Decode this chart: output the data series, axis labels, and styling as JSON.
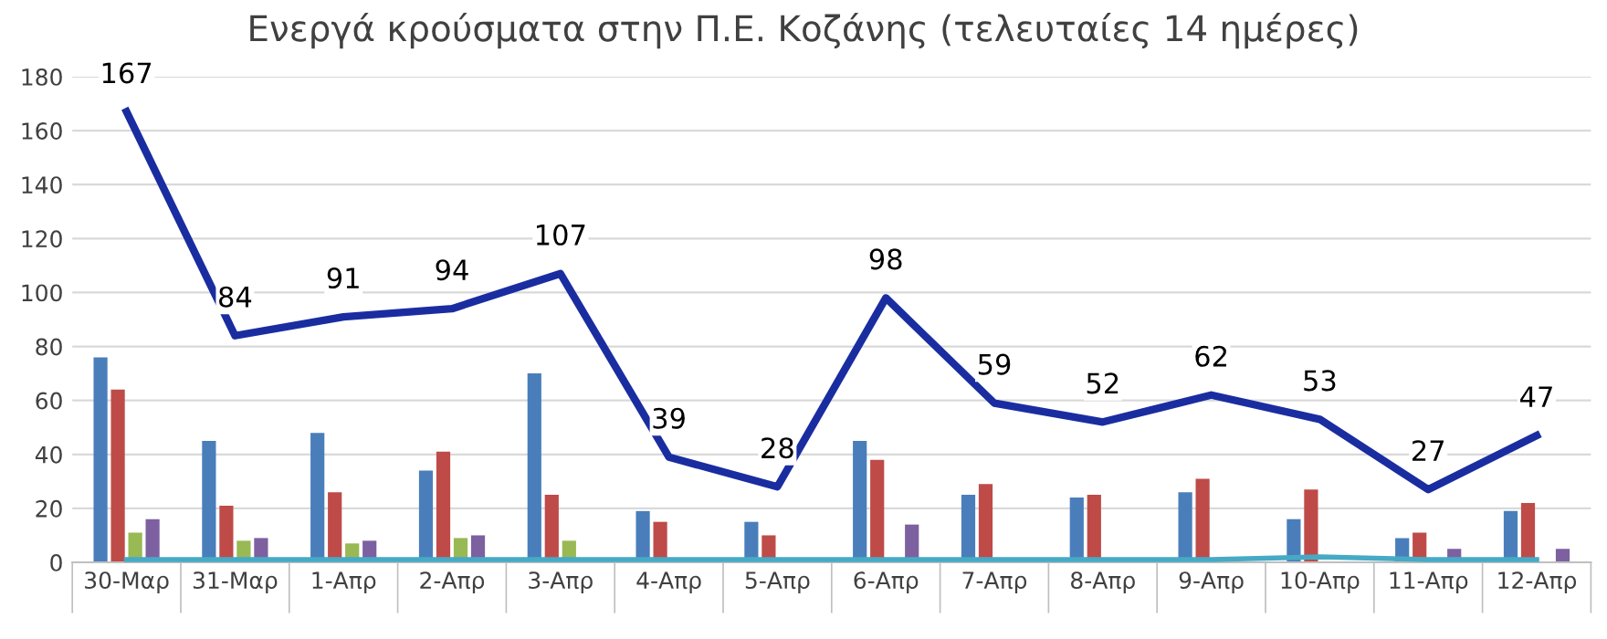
{
  "chart_data": {
    "type": "bar",
    "title": "Ενεργά κρούσματα στην Π.Ε. Κοζάνης (τελευταίες 14 ημέρες)",
    "categories": [
      "30-Μαρ",
      "31-Μαρ",
      "1-Απρ",
      "2-Απρ",
      "3-Απρ",
      "4-Απρ",
      "5-Απρ",
      "6-Απρ",
      "7-Απρ",
      "8-Απρ",
      "9-Απρ",
      "10-Απρ",
      "11-Απρ",
      "12-Απρ"
    ],
    "series": [
      {
        "color": "#4a7ebb",
        "values": [
          76,
          45,
          48,
          34,
          70,
          19,
          15,
          45,
          25,
          24,
          26,
          16,
          9,
          19
        ]
      },
      {
        "color": "#be4b48",
        "values": [
          64,
          21,
          26,
          41,
          25,
          15,
          10,
          38,
          29,
          25,
          31,
          27,
          11,
          22
        ]
      },
      {
        "color": "#98b954",
        "values": [
          11,
          8,
          7,
          9,
          8,
          null,
          null,
          null,
          null,
          null,
          null,
          null,
          null,
          null
        ]
      },
      {
        "color": "#7d60a0",
        "values": [
          16,
          9,
          8,
          10,
          null,
          null,
          null,
          14,
          null,
          null,
          null,
          null,
          5,
          5
        ]
      },
      {
        "type": "line",
        "color": "#46aac5",
        "values": [
          1,
          1,
          1,
          1,
          1,
          1,
          1,
          1,
          1,
          1,
          1,
          2,
          1,
          1
        ]
      },
      {
        "type": "line",
        "color": "#1a2da0",
        "data_labels": true,
        "values": [
          167,
          84,
          91,
          94,
          107,
          39,
          28,
          98,
          59,
          52,
          62,
          53,
          27,
          47
        ]
      }
    ],
    "ylim": [
      0,
      180
    ],
    "yticks": [
      0,
      20,
      40,
      60,
      80,
      100,
      120,
      140,
      160,
      180
    ],
    "grid": "y",
    "legend": false
  }
}
